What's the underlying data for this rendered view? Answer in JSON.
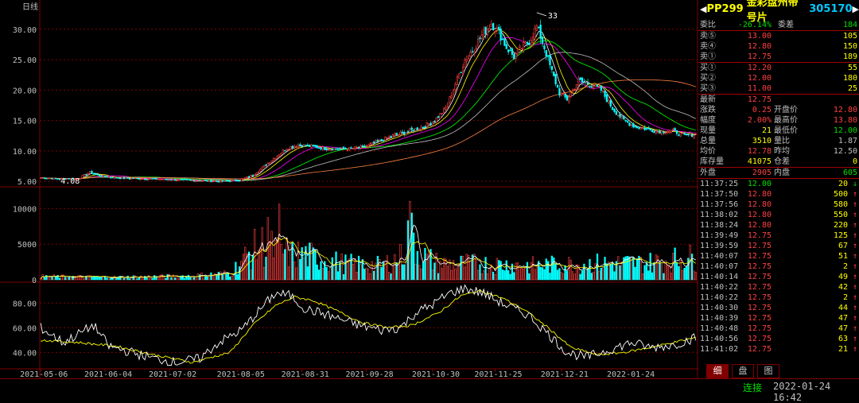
{
  "chart_title": "日线",
  "header": {
    "code": "PP299",
    "name": "金彩盘州带号片",
    "number": "305170"
  },
  "quote": {
    "wei_bi_label": "委比",
    "wei_bi": "-26.14%",
    "wei_cha_label": "委差",
    "wei_cha": "184",
    "asks": [
      {
        "label": "卖⑤",
        "price": "13.00",
        "vol": "105"
      },
      {
        "label": "卖④",
        "price": "12.80",
        "vol": "150"
      },
      {
        "label": "卖①",
        "price": "12.75",
        "vol": "189"
      }
    ],
    "bids": [
      {
        "label": "买①",
        "price": "12.20",
        "vol": "55"
      },
      {
        "label": "买②",
        "price": "12.00",
        "vol": "180"
      },
      {
        "label": "买③",
        "price": "11.00",
        "vol": "25"
      }
    ],
    "stats": [
      {
        "l1": "最新",
        "v1": "12.75",
        "l2": "",
        "v2": ""
      },
      {
        "l1": "涨跌",
        "v1": "0.25",
        "l2": "开盘价",
        "v2": "12.80"
      },
      {
        "l1": "幅度",
        "v1": "2.00%",
        "l2": "最高价",
        "v2": "13.80"
      },
      {
        "l1": "现量",
        "v1": "21",
        "l2": "最低价",
        "v2": "12.00"
      },
      {
        "l1": "总量",
        "v1": "3510",
        "l2": "量比",
        "v2": "1.87"
      },
      {
        "l1": "均价",
        "v1": "12.78",
        "l2": "昨均",
        "v2": "12.50"
      },
      {
        "l1": "库存量",
        "v1": "41075",
        "l2": "仓差",
        "v2": "0"
      }
    ],
    "outer_label": "外盘",
    "outer": "2905",
    "inner_label": "内盘",
    "inner": "605"
  },
  "ticks": [
    {
      "time": "11:37:25",
      "price": "12.00",
      "vol": "20",
      "dir": "↓"
    },
    {
      "time": "11:37:50",
      "price": "12.80",
      "vol": "500",
      "dir": "↑"
    },
    {
      "time": "11:37:56",
      "price": "12.80",
      "vol": "580",
      "dir": "↑"
    },
    {
      "time": "11:38:02",
      "price": "12.80",
      "vol": "550",
      "dir": "↑"
    },
    {
      "time": "11:38:24",
      "price": "12.80",
      "vol": "220",
      "dir": "↑"
    },
    {
      "time": "11:39:49",
      "price": "12.75",
      "vol": "125",
      "dir": "↑"
    },
    {
      "time": "11:39:59",
      "price": "12.75",
      "vol": "67",
      "dir": "↑"
    },
    {
      "time": "11:40:07",
      "price": "12.75",
      "vol": "51",
      "dir": "↑"
    },
    {
      "time": "11:40:07",
      "price": "12.75",
      "vol": "2",
      "dir": "↑"
    },
    {
      "time": "11:40:14",
      "price": "12.75",
      "vol": "49",
      "dir": "↑"
    },
    {
      "time": "11:40:22",
      "price": "12.75",
      "vol": "42",
      "dir": "↑"
    },
    {
      "time": "11:40:22",
      "price": "12.75",
      "vol": "2",
      "dir": "↑"
    },
    {
      "time": "11:40:30",
      "price": "12.75",
      "vol": "44",
      "dir": "↑"
    },
    {
      "time": "11:40:39",
      "price": "12.75",
      "vol": "47",
      "dir": "↑"
    },
    {
      "time": "11:40:48",
      "price": "12.75",
      "vol": "47",
      "dir": "↑"
    },
    {
      "time": "11:40:56",
      "price": "12.75",
      "vol": "63",
      "dir": "↑"
    },
    {
      "time": "11:41:02",
      "price": "12.75",
      "vol": "21",
      "dir": "↑"
    }
  ],
  "tabs": [
    "细",
    "盘",
    "图"
  ],
  "status": {
    "connection": "连接",
    "datetime": "2022-01-24 16:42"
  },
  "colors": {
    "up": "#ff4040",
    "down": "#00ffff",
    "grid": "#800000",
    "yellow": "#ffff00",
    "green": "#00e000",
    "white": "#ffffff"
  },
  "chart_data": {
    "type": "candlestick",
    "title": "日线",
    "x_tick_labels": [
      "2021-05-06",
      "2021-06-04",
      "2021-07-02",
      "2021-08-05",
      "2021-08-31",
      "2021-09-28",
      "2021-10-30",
      "2021-11-25",
      "2021-12-21",
      "2022-01-24"
    ],
    "price_axis": {
      "ticks": [
        "30.00",
        "25.00",
        "20.00",
        "15.00",
        "10.00",
        "5.00"
      ],
      "ylim": [
        4.5,
        33.5
      ]
    },
    "volume_axis": {
      "ticks": [
        "10000",
        "5000",
        "0"
      ],
      "ylim": [
        0,
        12500
      ]
    },
    "osc_axis": {
      "ticks": [
        "80.00",
        "60.00",
        "40.00"
      ],
      "ylim": [
        28,
        95
      ]
    },
    "annotations": [
      {
        "text": "33",
        "at": "peak"
      },
      {
        "text": "4.08",
        "at": "low"
      }
    ],
    "price_anchors_close": [
      [
        0,
        5.6
      ],
      [
        10,
        5.4
      ],
      [
        20,
        5.5
      ],
      [
        26,
        6.5
      ],
      [
        32,
        5.8
      ],
      [
        45,
        5.5
      ],
      [
        60,
        5.4
      ],
      [
        75,
        5.2
      ],
      [
        85,
        5.1
      ],
      [
        95,
        5.0
      ],
      [
        105,
        5.2
      ],
      [
        112,
        6.0
      ],
      [
        118,
        7.5
      ],
      [
        124,
        9.0
      ],
      [
        130,
        10.5
      ],
      [
        136,
        11.0
      ],
      [
        142,
        10.8
      ],
      [
        150,
        10.4
      ],
      [
        160,
        10.3
      ],
      [
        170,
        10.6
      ],
      [
        178,
        11.5
      ],
      [
        186,
        12.5
      ],
      [
        194,
        13.2
      ],
      [
        202,
        14.0
      ],
      [
        208,
        15.0
      ],
      [
        214,
        17.0
      ],
      [
        219,
        21.0
      ],
      [
        224,
        25.0
      ],
      [
        229,
        27.0
      ],
      [
        233,
        29.0
      ],
      [
        238,
        31.0
      ],
      [
        242,
        29.5
      ],
      [
        246,
        27.0
      ],
      [
        250,
        25.5
      ],
      [
        254,
        27.0
      ],
      [
        258,
        28.0
      ],
      [
        262,
        30.5
      ],
      [
        266,
        27.0
      ],
      [
        270,
        23.0
      ],
      [
        274,
        19.5
      ],
      [
        278,
        18.5
      ],
      [
        284,
        21.5
      ],
      [
        290,
        21.0
      ],
      [
        296,
        20.0
      ],
      [
        302,
        17.0
      ],
      [
        308,
        15.0
      ],
      [
        314,
        14.0
      ],
      [
        320,
        13.6
      ],
      [
        326,
        13.2
      ],
      [
        334,
        13.3
      ],
      [
        340,
        12.5
      ],
      [
        346,
        12.75
      ]
    ],
    "volume_anchors": [
      [
        0,
        500
      ],
      [
        40,
        400
      ],
      [
        80,
        600
      ],
      [
        100,
        1000
      ],
      [
        110,
        4000
      ],
      [
        116,
        5500
      ],
      [
        124,
        4500
      ],
      [
        132,
        4000
      ],
      [
        140,
        3800
      ],
      [
        160,
        2500
      ],
      [
        180,
        2200
      ],
      [
        190,
        3500
      ],
      [
        195,
        7500
      ],
      [
        200,
        4000
      ],
      [
        210,
        2500
      ],
      [
        230,
        2500
      ],
      [
        260,
        2200
      ],
      [
        290,
        2500
      ],
      [
        320,
        2600
      ],
      [
        346,
        3510
      ]
    ],
    "osc_anchors_white": [
      [
        0,
        60
      ],
      [
        12,
        48
      ],
      [
        20,
        55
      ],
      [
        28,
        62
      ],
      [
        36,
        45
      ],
      [
        48,
        40
      ],
      [
        60,
        35
      ],
      [
        72,
        32
      ],
      [
        84,
        35
      ],
      [
        94,
        48
      ],
      [
        106,
        58
      ],
      [
        116,
        75
      ],
      [
        124,
        88
      ],
      [
        132,
        86
      ],
      [
        140,
        75
      ],
      [
        148,
        72
      ],
      [
        156,
        68
      ],
      [
        168,
        62
      ],
      [
        180,
        58
      ],
      [
        190,
        60
      ],
      [
        198,
        72
      ],
      [
        206,
        78
      ],
      [
        216,
        88
      ],
      [
        224,
        92
      ],
      [
        234,
        88
      ],
      [
        246,
        78
      ],
      [
        258,
        70
      ],
      [
        268,
        55
      ],
      [
        278,
        40
      ],
      [
        288,
        36
      ],
      [
        300,
        42
      ],
      [
        312,
        48
      ],
      [
        322,
        44
      ],
      [
        334,
        46
      ],
      [
        346,
        52
      ]
    ],
    "osc_anchors_yellow": [
      [
        0,
        50
      ],
      [
        20,
        48
      ],
      [
        40,
        45
      ],
      [
        60,
        38
      ],
      [
        80,
        32
      ],
      [
        100,
        40
      ],
      [
        112,
        62
      ],
      [
        124,
        78
      ],
      [
        134,
        85
      ],
      [
        144,
        82
      ],
      [
        156,
        74
      ],
      [
        170,
        64
      ],
      [
        184,
        60
      ],
      [
        196,
        62
      ],
      [
        210,
        72
      ],
      [
        222,
        86
      ],
      [
        232,
        90
      ],
      [
        244,
        84
      ],
      [
        256,
        74
      ],
      [
        268,
        60
      ],
      [
        280,
        44
      ],
      [
        294,
        38
      ],
      [
        308,
        40
      ],
      [
        322,
        44
      ],
      [
        346,
        52
      ]
    ],
    "ma_periods": [
      5,
      10,
      20,
      40,
      60,
      120
    ],
    "ma_colors": [
      "#ffffff",
      "#ffff00",
      "#ff00ff",
      "#00ff00",
      "#c0c0c0",
      "#ff8040"
    ]
  }
}
